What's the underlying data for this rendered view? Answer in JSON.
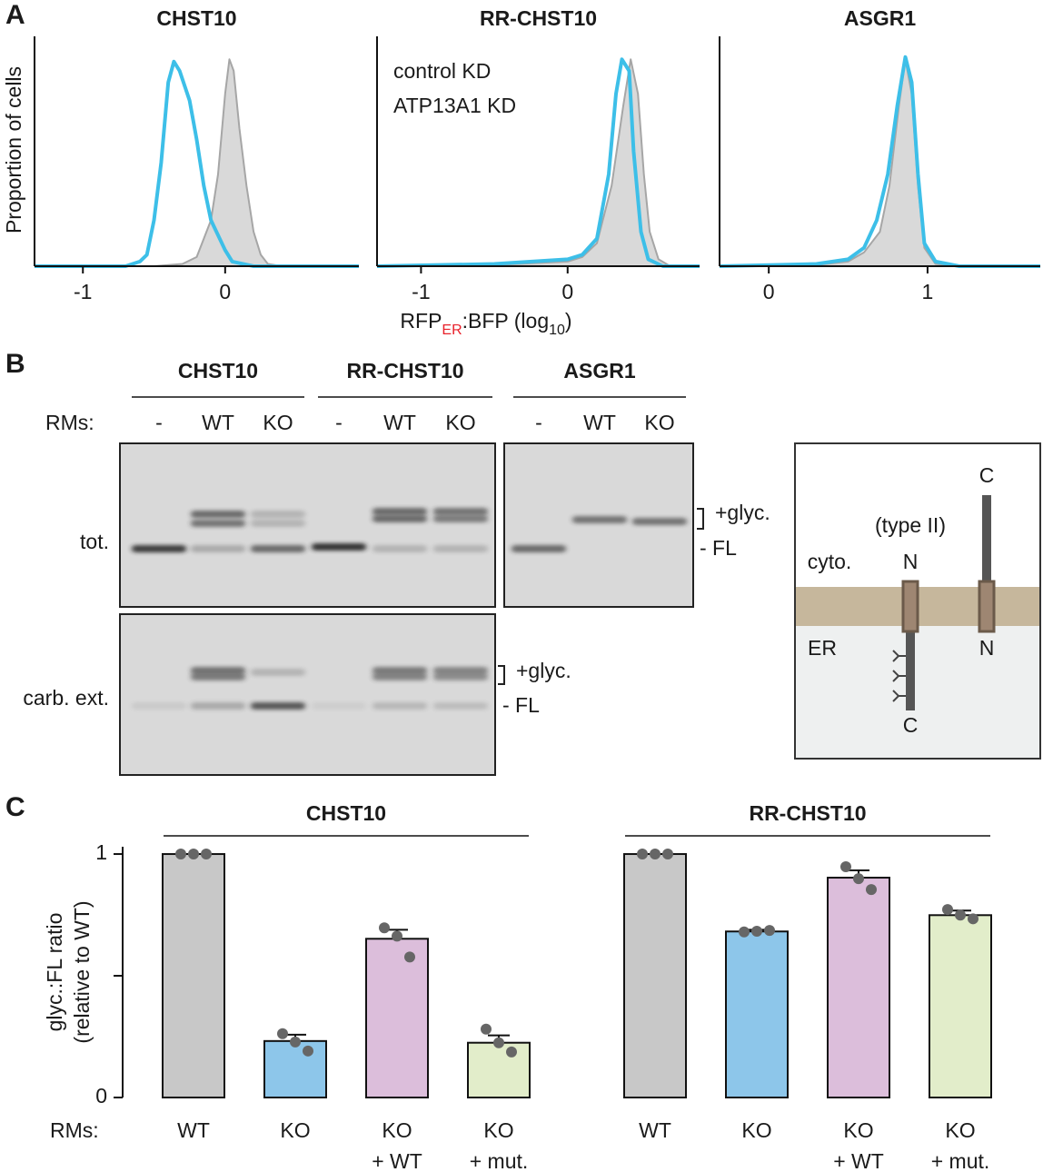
{
  "panel_labels": [
    "A",
    "B",
    "C"
  ],
  "chart_data": [
    {
      "type": "line",
      "title": "CHST10",
      "ylabel": "Proportion of cells",
      "xlim": [
        -1.34,
        0.94
      ],
      "ylim": [
        0,
        1
      ],
      "xticks": [
        -1,
        0
      ],
      "series": [
        {
          "color": "#a6a6a6",
          "fill": "#d9d9d9",
          "x": [
            -1.34,
            -0.5,
            -0.3,
            -0.2,
            -0.1,
            -0.05,
            0,
            0.03,
            0.06,
            0.1,
            0.15,
            0.2,
            0.25,
            0.3,
            0.4,
            0.94
          ],
          "values": [
            0,
            0,
            0.01,
            0.04,
            0.2,
            0.4,
            0.75,
            0.9,
            0.85,
            0.6,
            0.35,
            0.15,
            0.05,
            0.01,
            0,
            0
          ]
        },
        {
          "color": "#3dbfe8",
          "x": [
            -1.34,
            -0.7,
            -0.6,
            -0.55,
            -0.5,
            -0.45,
            -0.4,
            -0.36,
            -0.32,
            -0.25,
            -0.2,
            -0.15,
            -0.1,
            0,
            0.05,
            0.2,
            0.94
          ],
          "values": [
            0,
            0,
            0.02,
            0.05,
            0.2,
            0.45,
            0.8,
            0.89,
            0.85,
            0.72,
            0.55,
            0.35,
            0.2,
            0.07,
            0.02,
            0,
            0
          ]
        }
      ]
    },
    {
      "type": "line",
      "title": "RR-CHST10",
      "xlabel": [
        "RFP",
        "ER",
        ":BFP (log",
        "10",
        ")"
      ],
      "xlim": [
        -1.3,
        0.9
      ],
      "ylim": [
        0,
        1
      ],
      "xticks": [
        -1,
        0
      ],
      "series": [
        {
          "name": "control KD",
          "color": "#a6a6a6",
          "fill": "#d9d9d9",
          "x": [
            -1.3,
            -0.5,
            0,
            0.1,
            0.2,
            0.3,
            0.38,
            0.43,
            0.48,
            0.52,
            0.56,
            0.62,
            0.7,
            0.9
          ],
          "values": [
            0,
            0.005,
            0.02,
            0.04,
            0.1,
            0.35,
            0.7,
            0.9,
            0.75,
            0.4,
            0.15,
            0.03,
            0,
            0
          ]
        },
        {
          "name": "ATP13A1 KD",
          "color": "#3dbfe8",
          "x": [
            -1.3,
            -0.5,
            0,
            0.1,
            0.2,
            0.28,
            0.33,
            0.37,
            0.42,
            0.45,
            0.5,
            0.55,
            0.65,
            0.9
          ],
          "values": [
            0,
            0.01,
            0.03,
            0.05,
            0.12,
            0.4,
            0.75,
            0.9,
            0.85,
            0.5,
            0.15,
            0.03,
            0,
            0
          ]
        }
      ]
    },
    {
      "type": "line",
      "title": "ASGR1",
      "xlim": [
        -0.31,
        1.71
      ],
      "ylim": [
        0,
        1
      ],
      "xticks": [
        0,
        1
      ],
      "series": [
        {
          "color": "#a6a6a6",
          "fill": "#d9d9d9",
          "x": [
            -0.31,
            0.3,
            0.5,
            0.6,
            0.7,
            0.76,
            0.82,
            0.86,
            0.9,
            0.94,
            0.98,
            1.05,
            1.2,
            1.71
          ],
          "values": [
            0,
            0.005,
            0.02,
            0.06,
            0.15,
            0.35,
            0.7,
            0.9,
            0.75,
            0.35,
            0.08,
            0.01,
            0,
            0
          ]
        },
        {
          "color": "#3dbfe8",
          "x": [
            -0.31,
            0.3,
            0.5,
            0.6,
            0.68,
            0.75,
            0.81,
            0.86,
            0.9,
            0.94,
            0.98,
            1.05,
            1.2,
            1.71
          ],
          "values": [
            0,
            0.01,
            0.03,
            0.08,
            0.2,
            0.4,
            0.7,
            0.91,
            0.8,
            0.4,
            0.1,
            0.02,
            0,
            0
          ]
        }
      ]
    },
    {
      "type": "bar",
      "title": "CHST10",
      "ylabel": [
        "glyc.:FL ratio",
        "(relative to WT)"
      ],
      "category_axis_label": "RMs:",
      "categories": [
        [
          "WT"
        ],
        [
          "KO"
        ],
        [
          "KO",
          "+ WT"
        ],
        [
          "KO",
          "+ mut."
        ]
      ],
      "colors": [
        "#c8c8c8",
        "#8dc6ea",
        "#dcbedb",
        "#e2edca"
      ],
      "values": [
        1,
        0.232,
        0.652,
        0.225
      ],
      "errors": [
        0,
        0.026,
        0.037,
        0.03
      ],
      "points": [
        [
          1,
          1,
          1
        ],
        [
          0.262,
          0.228,
          0.191
        ],
        [
          0.697,
          0.663,
          0.577
        ],
        [
          0.281,
          0.225,
          0.187
        ]
      ],
      "ylim": [
        0,
        1.03
      ],
      "yticks": [
        0,
        1
      ],
      "yminor_ticks": [
        0.5
      ]
    },
    {
      "type": "bar",
      "title": "RR-CHST10",
      "categories": [
        [
          "WT"
        ],
        [
          "KO"
        ],
        [
          "KO",
          "+ WT"
        ],
        [
          "KO",
          "+ mut."
        ]
      ],
      "colors": [
        "#c8c8c8",
        "#8dc6ea",
        "#dcbedb",
        "#e2edca"
      ],
      "values": [
        1,
        0.682,
        0.903,
        0.749
      ],
      "errors": [
        0,
        0.007,
        0.03,
        0.019
      ],
      "points": [
        [
          1,
          1,
          1
        ],
        [
          0.68,
          0.683,
          0.686
        ],
        [
          0.948,
          0.899,
          0.854
        ],
        [
          0.772,
          0.749,
          0.734
        ]
      ],
      "ylim": [
        0,
        1.03
      ]
    }
  ],
  "panel_b": {
    "groups": [
      "CHST10",
      "RR-CHST10",
      "ASGR1"
    ],
    "rms_label": "RMs:",
    "lanes": [
      [
        "-",
        "WT",
        "KO"
      ],
      [
        "-",
        "WT",
        "KO"
      ],
      [
        "-",
        "WT",
        "KO"
      ]
    ],
    "rows": [
      "tot.",
      "carb. ext."
    ],
    "band_labels": [
      [
        "+glyc.",
        "- FL"
      ],
      [
        "+glyc.",
        "- FL"
      ]
    ],
    "diagram": {
      "top_c": "C",
      "type": "(type II)",
      "cyto": "cyto.",
      "n1": "N",
      "n2": "N",
      "er": "ER",
      "bottom_c": "C"
    }
  }
}
